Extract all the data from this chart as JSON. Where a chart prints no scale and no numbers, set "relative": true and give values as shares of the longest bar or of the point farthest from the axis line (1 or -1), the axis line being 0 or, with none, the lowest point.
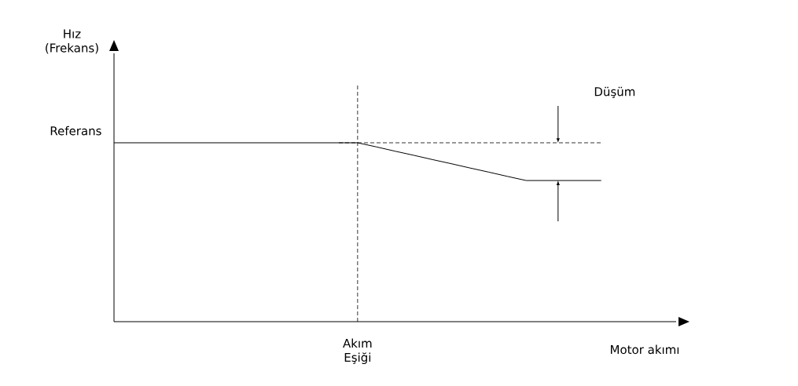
{
  "chart_data": {
    "type": "line",
    "relative": true,
    "xlabel": "Motor akımı",
    "marker": "none",
    "line_style": "solid",
    "categories": [
      null,
      null,
      null,
      null,
      null,
      null,
      null,
      null,
      null,
      null,
      null,
      null,
      null,
      null,
      null,
      null,
      null,
      null,
      null,
      null,
      null,
      null,
      null,
      null,
      null,
      null,
      null
    ],
    "series": [
      {
        "values": [
          1,
          1,
          1,
          1,
          1,
          1,
          1,
          1,
          1,
          1,
          1,
          1,
          1,
          1,
          0.977,
          0.953,
          0.93,
          0.906,
          0.883,
          0.859,
          0.836,
          0.812,
          0.789,
          0.789,
          0.789,
          0.789,
          0.789
        ],
        "color": "#000000"
      }
    ],
    "ref_lines": [
      {
        "axis": "y",
        "value": 1,
        "label": "Referans",
        "line_style": "dashed",
        "color": "#000000"
      }
    ],
    "annotations": [
      "Akım Eşiği",
      "Düşüm",
      "Hız (Frekans)"
    ]
  }
}
